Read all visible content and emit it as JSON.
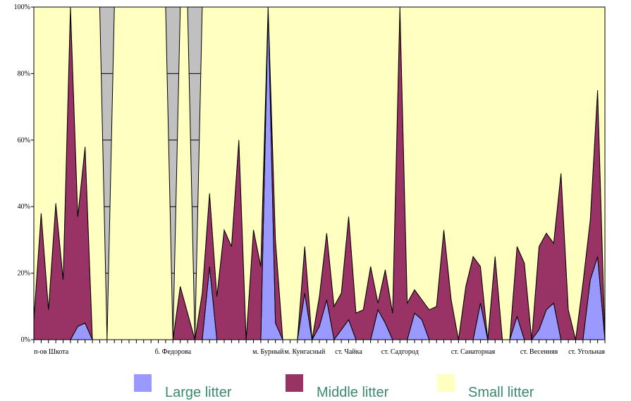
{
  "chart_data": {
    "type": "stacked_area_percent",
    "categories": [
      "п-ов Шкота",
      null,
      null,
      null,
      null,
      null,
      null,
      null,
      null,
      null,
      null,
      null,
      null,
      null,
      null,
      null,
      null,
      null,
      null,
      "б. Федорова",
      null,
      null,
      null,
      null,
      null,
      null,
      null,
      null,
      null,
      null,
      null,
      null,
      "м. Бурный",
      null,
      null,
      null,
      null,
      "м. Кунгасный",
      null,
      null,
      null,
      null,
      null,
      "ст. Чайка",
      null,
      null,
      null,
      null,
      null,
      null,
      "ст. Садгород",
      null,
      null,
      null,
      null,
      null,
      null,
      null,
      null,
      null,
      "ст. Санаторная",
      null,
      null,
      null,
      null,
      null,
      null,
      null,
      null,
      "ст. Весенняя",
      null,
      null,
      null,
      null,
      null,
      null,
      null,
      null,
      "ст. Угольная"
    ],
    "series": [
      {
        "name": "Large litter",
        "color": "#9999ff",
        "values": [
          0,
          0,
          0,
          0,
          0,
          0,
          4,
          5,
          0,
          0,
          0,
          0,
          0,
          0,
          0,
          0,
          0,
          0,
          0,
          0,
          0,
          0,
          0,
          0,
          22,
          0,
          0,
          0,
          0,
          0,
          0,
          0,
          100,
          5,
          0,
          0,
          0,
          14,
          0,
          4,
          12,
          0,
          3,
          6,
          0,
          0,
          0,
          9,
          5,
          0,
          0,
          0,
          8,
          6,
          0,
          0,
          0,
          0,
          0,
          0,
          0,
          11,
          0,
          0,
          0,
          0,
          7,
          0,
          0,
          3,
          9,
          11,
          0,
          0,
          0,
          0,
          18,
          25,
          0
        ]
      },
      {
        "name": "Middle litter",
        "color": "#993366",
        "values": [
          6,
          38,
          9,
          41,
          18,
          100,
          33,
          53,
          0,
          0,
          0,
          0,
          0,
          0,
          0,
          0,
          0,
          0,
          0,
          0,
          16,
          8,
          0,
          14,
          22,
          13,
          33,
          28,
          60,
          0,
          33,
          22,
          0,
          25,
          0,
          0,
          0,
          14,
          0,
          9,
          20,
          10,
          11,
          31,
          8,
          9,
          22,
          2,
          16,
          8,
          100,
          11,
          7,
          6,
          9,
          10,
          33,
          12,
          0,
          16,
          25,
          11,
          0,
          25,
          0,
          0,
          21,
          23,
          0,
          25,
          23,
          18,
          50,
          9,
          0,
          17,
          18,
          50,
          0
        ]
      },
      {
        "name": "Small litter",
        "color": "#ffffc0",
        "values": [
          94,
          62,
          91,
          59,
          82,
          0,
          63,
          42,
          100,
          100,
          0,
          100,
          100,
          100,
          100,
          100,
          100,
          100,
          100,
          0,
          84,
          92,
          0,
          86,
          56,
          87,
          67,
          72,
          40,
          100,
          67,
          78,
          0,
          70,
          100,
          100,
          100,
          72,
          100,
          87,
          68,
          90,
          86,
          63,
          92,
          91,
          78,
          89,
          79,
          92,
          0,
          89,
          85,
          88,
          91,
          90,
          67,
          88,
          100,
          84,
          75,
          78,
          100,
          75,
          100,
          100,
          72,
          77,
          100,
          72,
          68,
          71,
          50,
          91,
          100,
          83,
          64,
          25,
          100
        ]
      }
    ],
    "ylim": [
      0,
      100
    ],
    "yticks": [
      {
        "value": 0,
        "label": "0%"
      },
      {
        "value": 20,
        "label": "20%"
      },
      {
        "value": 40,
        "label": "40%"
      },
      {
        "value": 60,
        "label": "60%"
      },
      {
        "value": 80,
        "label": "80%"
      },
      {
        "value": 100,
        "label": "100%"
      }
    ],
    "grid": true
  }
}
